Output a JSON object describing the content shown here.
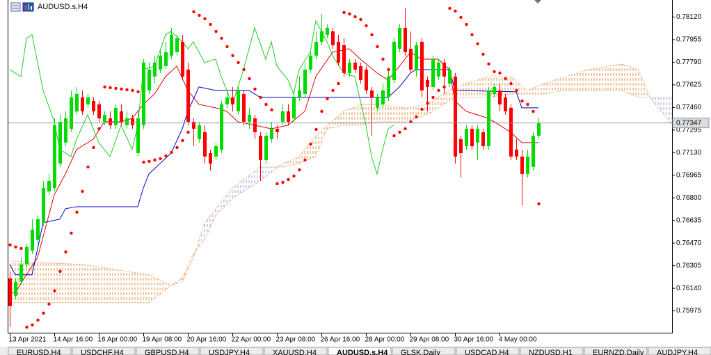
{
  "chart_data": {
    "type": "candlestick",
    "title": "AUDUSD.s,H4",
    "up_color": "#00dc00",
    "down_color": "#ff0000",
    "ylim": [
      0.75818,
      0.78242
    ],
    "yticks": [
      {
        "value": 0.7812,
        "label": "0.78120"
      },
      0.77955,
      {
        "value": 0.7779,
        "label": "0.77790"
      },
      0.77625,
      {
        "value": 0.7746,
        "label": "0.77460"
      },
      0.77295,
      {
        "value": 0.7713,
        "label": "0.77130"
      },
      0.76965,
      {
        "value": 0.768,
        "label": "0.76800"
      },
      0.76635,
      {
        "value": 0.7647,
        "label": "0.76470"
      },
      0.76305,
      {
        "value": 0.7614,
        "label": "0.76140"
      },
      0.75975
    ],
    "xticks": [
      {
        "value": 0,
        "label": "13 Apr 2021"
      },
      {
        "value": 8,
        "label": "14 Apr 16:00"
      },
      {
        "value": 16,
        "label": "16 Apr 00:00"
      },
      {
        "value": 24,
        "label": "19 Apr 08:00"
      },
      {
        "value": 32,
        "label": "20 Apr 16:00"
      },
      {
        "value": 40,
        "label": "22 Apr 00:00"
      },
      {
        "value": 48,
        "label": "23 Apr 08:00"
      },
      {
        "value": 56,
        "label": "26 Apr 16:00"
      },
      {
        "value": 64,
        "label": "28 Apr 00:00"
      },
      {
        "value": 72,
        "label": "29 Apr 08:00"
      },
      {
        "value": 80,
        "label": "30 Apr 16:00"
      },
      {
        "value": 88,
        "label": "4 May 00:00"
      }
    ],
    "current_price": 0.77347,
    "open": [
      0.7621,
      0.76083,
      0.76185,
      0.76312,
      0.76413,
      0.76489,
      0.76616,
      0.76845,
      0.7687,
      0.77048,
      0.77201,
      0.77302,
      0.77429,
      0.77531,
      0.7748,
      0.77505,
      0.7748,
      0.77353,
      0.77378,
      0.77328,
      0.77429,
      0.77328,
      0.77378,
      0.77124,
      0.77328,
      0.77582,
      0.77683,
      0.77734,
      0.77759,
      0.77836,
      0.77861,
      0.77937,
      0.77734,
      0.77353,
      0.77226,
      0.77277,
      0.77124,
      0.77099,
      0.7715,
      0.7748,
      0.77531,
      0.77429,
      0.77556,
      0.77353,
      0.77378,
      0.77251,
      0.77074,
      0.77226,
      0.77302,
      0.77353,
      0.77429,
      0.77378,
      0.77531,
      0.77556,
      0.77734,
      0.77836,
      0.77937,
      0.77988,
      0.78013,
      0.77937,
      0.77912,
      0.77709,
      0.77785,
      0.77759,
      0.77734,
      0.77582,
      0.77455,
      0.7748,
      0.77531,
      0.77658,
      0.77886,
      0.78039,
      0.77886,
      0.77734,
      0.77937,
      0.77658,
      0.77607,
      0.77683,
      0.77785,
      0.77632,
      0.77683,
      0.77226,
      0.77175,
      0.77302,
      0.77201,
      0.77277,
      0.77175,
      0.77556,
      0.77582,
      0.77531,
      0.77455,
      0.7715,
      0.77099,
      0.76972,
      0.77023,
      0.77251
    ],
    "high": [
      0.76261,
      0.7621,
      0.76362,
      0.76464,
      0.76642,
      0.76667,
      0.76921,
      0.76972,
      0.77378,
      0.77404,
      0.77429,
      0.77582,
      0.77607,
      0.77582,
      0.77556,
      0.77531,
      0.77505,
      0.77429,
      0.77429,
      0.7748,
      0.7748,
      0.77429,
      0.77404,
      0.77429,
      0.7781,
      0.77785,
      0.77836,
      0.77886,
      0.77937,
      0.78039,
      0.77988,
      0.77988,
      0.77785,
      0.77378,
      0.77353,
      0.77328,
      0.7715,
      0.77201,
      0.77505,
      0.77582,
      0.77607,
      0.77607,
      0.77582,
      0.77455,
      0.77404,
      0.77277,
      0.77277,
      0.77353,
      0.77328,
      0.7748,
      0.7748,
      0.77582,
      0.77683,
      0.77785,
      0.77861,
      0.78013,
      0.7814,
      0.78064,
      0.78039,
      0.77988,
      0.77963,
      0.7781,
      0.7781,
      0.77785,
      0.77759,
      0.77607,
      0.77556,
      0.77632,
      0.77734,
      0.77963,
      0.78064,
      0.78181,
      0.78013,
      0.77937,
      0.77963,
      0.77683,
      0.77836,
      0.7781,
      0.7781,
      0.77759,
      0.77709,
      0.77251,
      0.77328,
      0.77328,
      0.77328,
      0.77302,
      0.77607,
      0.77632,
      0.77632,
      0.77556,
      0.7748,
      0.77226,
      0.7715,
      0.7715,
      0.77277,
      0.77378
    ],
    "low": [
      0.75854,
      0.76058,
      0.76159,
      0.76286,
      0.76388,
      0.76464,
      0.76591,
      0.7682,
      0.76845,
      0.77023,
      0.77175,
      0.77277,
      0.77404,
      0.77404,
      0.77455,
      0.77404,
      0.77353,
      0.77328,
      0.77302,
      0.77302,
      0.77328,
      0.77302,
      0.77302,
      0.77099,
      0.77302,
      0.77556,
      0.77632,
      0.77709,
      0.77734,
      0.7781,
      0.77836,
      0.77658,
      0.77328,
      0.77175,
      0.77201,
      0.77048,
      0.76997,
      0.77074,
      0.77124,
      0.77455,
      0.77429,
      0.77404,
      0.77328,
      0.77302,
      0.77226,
      0.76921,
      0.77048,
      0.77201,
      0.77226,
      0.77328,
      0.77328,
      0.77353,
      0.77505,
      0.77531,
      0.77709,
      0.7781,
      0.77912,
      0.77963,
      0.77886,
      0.77759,
      0.77683,
      0.77683,
      0.77709,
      0.77632,
      0.77556,
      0.77251,
      0.77429,
      0.77455,
      0.77505,
      0.77632,
      0.77861,
      0.77836,
      0.77709,
      0.77683,
      0.77531,
      0.77429,
      0.77582,
      0.77658,
      0.77556,
      0.77607,
      0.77048,
      0.76947,
      0.7715,
      0.7715,
      0.77074,
      0.7715,
      0.7715,
      0.77531,
      0.77429,
      0.77404,
      0.77074,
      0.77074,
      0.76743,
      0.76947,
      0.76997,
      0.77226
    ],
    "close": [
      0.76007,
      0.76185,
      0.76312,
      0.76439,
      0.76566,
      0.76642,
      0.7687,
      0.76921,
      0.77328,
      0.77353,
      0.77378,
      0.77531,
      0.77556,
      0.77429,
      0.77531,
      0.77429,
      0.77378,
      0.77404,
      0.77328,
      0.77455,
      0.77353,
      0.77378,
      0.77328,
      0.77378,
      0.77785,
      0.77734,
      0.77785,
      0.77836,
      0.77861,
      0.77988,
      0.77963,
      0.77683,
      0.77353,
      0.77302,
      0.77328,
      0.77099,
      0.77048,
      0.77175,
      0.7748,
      0.77531,
      0.7748,
      0.77582,
      0.77353,
      0.77404,
      0.77277,
      0.77074,
      0.77251,
      0.77302,
      0.77277,
      0.77429,
      0.77353,
      0.77531,
      0.77582,
      0.77734,
      0.77836,
      0.77937,
      0.78013,
      0.78039,
      0.77912,
      0.77785,
      0.77709,
      0.77785,
      0.77734,
      0.77658,
      0.77582,
      0.77531,
      0.77531,
      0.77582,
      0.77683,
      0.77937,
      0.78039,
      0.77861,
      0.77734,
      0.77912,
      0.77582,
      0.77607,
      0.7781,
      0.77785,
      0.77683,
      0.77734,
      0.77099,
      0.77124,
      0.77302,
      0.77175,
      0.77302,
      0.77175,
      0.77582,
      0.77607,
      0.7748,
      0.77429,
      0.77099,
      0.77099,
      0.76972,
      0.77099,
      0.77251,
      0.77347
    ],
    "lines": [
      {
        "color": "#e00000",
        "x": [
          0,
          1,
          3,
          5,
          6,
          8,
          10,
          12,
          15,
          17,
          20,
          22,
          24,
          26,
          28,
          30,
          32,
          34,
          37,
          39,
          41,
          44,
          47,
          50,
          53,
          55,
          58,
          61,
          63,
          66,
          68,
          70,
          72,
          74,
          77,
          79,
          80,
          82,
          84,
          86,
          88,
          90,
          92,
          95
        ],
        "values": [
          0.76108,
          0.76108,
          0.76236,
          0.76362,
          0.76515,
          0.7682,
          0.76972,
          0.7715,
          0.77226,
          0.77353,
          0.77353,
          0.77378,
          0.7748,
          0.77556,
          0.77683,
          0.77759,
          0.77582,
          0.7748,
          0.77455,
          0.77429,
          0.77353,
          0.77328,
          0.77302,
          0.77328,
          0.77429,
          0.77683,
          0.77861,
          0.77886,
          0.7781,
          0.77709,
          0.77658,
          0.77759,
          0.77861,
          0.7781,
          0.7781,
          0.77734,
          0.77505,
          0.77429,
          0.77404,
          0.77378,
          0.77328,
          0.77277,
          0.77201,
          0.77201
        ]
      },
      {
        "color": "#0000c8",
        "x": [
          0,
          1,
          4,
          6,
          9,
          10,
          12,
          23,
          24,
          25,
          29,
          31,
          32,
          34,
          37,
          43,
          45,
          68,
          70,
          72,
          73,
          79,
          80,
          91,
          92,
          95
        ],
        "values": [
          0.76312,
          0.76236,
          0.76236,
          0.76616,
          0.76642,
          0.76718,
          0.76733,
          0.76733,
          0.7687,
          0.76972,
          0.77124,
          0.77302,
          0.77429,
          0.77607,
          0.77582,
          0.77582,
          0.77531,
          0.77531,
          0.77607,
          0.77709,
          0.77734,
          0.77734,
          0.77582,
          0.77572,
          0.77455,
          0.77455
        ]
      },
      {
        "color": "#22cc22",
        "x": [
          0,
          2,
          3,
          4,
          6,
          8,
          9,
          11,
          12,
          14,
          16,
          18,
          20,
          22,
          23,
          24,
          26,
          28,
          29,
          31,
          32,
          33,
          35,
          37,
          38,
          40,
          42,
          44,
          46,
          47,
          48,
          50,
          51,
          52,
          54,
          55,
          57,
          58,
          60,
          62,
          64,
          65,
          66,
          67,
          68,
          69
        ],
        "values": [
          0.77734,
          0.77683,
          0.77963,
          0.77988,
          0.77582,
          0.77353,
          0.7715,
          0.77099,
          0.77226,
          0.77404,
          0.77201,
          0.77099,
          0.77328,
          0.7715,
          0.77328,
          0.77734,
          0.77759,
          0.77988,
          0.78013,
          0.77937,
          0.77886,
          0.77937,
          0.77785,
          0.7781,
          0.77683,
          0.7748,
          0.77734,
          0.78039,
          0.7781,
          0.77937,
          0.77759,
          0.77658,
          0.77556,
          0.77734,
          0.77861,
          0.7809,
          0.77937,
          0.77836,
          0.77709,
          0.77683,
          0.77328,
          0.77099,
          0.76972,
          0.7715,
          0.77302,
          0.77328
        ]
      }
    ],
    "cloud": {
      "up_color": "#e8904a",
      "down_color": "#9aa6e0",
      "x": [
        0,
        13,
        25,
        29,
        31,
        33,
        35,
        37,
        40,
        45,
        49,
        52,
        55,
        57,
        60,
        63,
        66,
        71,
        75,
        80,
        86,
        90,
        93,
        96,
        100,
        104,
        110,
        113,
        115,
        117,
        119
      ],
      "span_a": [
        0.76337,
        0.76312,
        0.76236,
        0.76159,
        0.7621,
        0.76388,
        0.76489,
        0.76667,
        0.76794,
        0.76921,
        0.77048,
        0.77099,
        0.77251,
        0.77328,
        0.77429,
        0.7748,
        0.7748,
        0.77455,
        0.7748,
        0.77607,
        0.77683,
        0.77683,
        0.77582,
        0.77632,
        0.77683,
        0.77734,
        0.77775,
        0.77734,
        0.77531,
        0.77429,
        0.77338
      ],
      "span_b": [
        0.76032,
        0.76032,
        0.76032,
        0.76159,
        0.76185,
        0.76362,
        0.76616,
        0.76718,
        0.7687,
        0.77023,
        0.77023,
        0.77048,
        0.77099,
        0.77302,
        0.77328,
        0.77328,
        0.77353,
        0.77353,
        0.77404,
        0.77531,
        0.77531,
        0.77556,
        0.77556,
        0.77556,
        0.77582,
        0.77582,
        0.77582,
        0.77531,
        0.77531,
        0.77531,
        0.77531
      ]
    },
    "sar": {
      "color": "#ff0000",
      "values": [
        0.76454,
        0.76439,
        0.76428,
        0.75854,
        0.7587,
        0.75905,
        0.75956,
        0.76022,
        0.76119,
        0.76261,
        0.76403,
        0.7654,
        0.76693,
        0.76845,
        0.77023,
        0.77165,
        0.77302,
        0.77607,
        0.77602,
        0.77597,
        0.77592,
        0.77587,
        0.77582,
        0.77572,
        0.77058,
        0.77064,
        0.77074,
        0.77084,
        0.77104,
        0.7713,
        0.77165,
        0.77216,
        0.77277,
        0.78156,
        0.7813,
        0.78105,
        0.78064,
        0.78013,
        0.77963,
        0.77902,
        0.77836,
        0.77785,
        0.77734,
        0.77668,
        0.77592,
        0.77531,
        0.7748,
        0.7744,
        0.76901,
        0.76911,
        0.76931,
        0.76957,
        0.77002,
        0.77074,
        0.7719,
        0.77297,
        0.77429,
        0.77521,
        0.77582,
        0.77632,
        0.78151,
        0.7814,
        0.7812,
        0.781,
        0.78054,
        0.77988,
        0.77902,
        0.7781,
        0.77734,
        0.77251,
        0.77277,
        0.77302,
        0.77353,
        0.77389,
        0.77444,
        0.7749,
        0.77531,
        0.77582,
        0.77607,
        0.78181,
        0.78161,
        0.78115,
        0.78064,
        0.77988,
        0.77922,
        0.77846,
        0.77775,
        0.77719,
        0.77709,
        0.77668,
        0.77632,
        0.77582,
        0.77505,
        0.7748,
        0.77429,
        0.76754
      ]
    }
  },
  "tabs": [
    "EURUSD,H4",
    "USDCHF,H4",
    "GBPUSD,H4",
    "USDJPY,H4",
    "XAUUSD,H4",
    "AUDUSD.s,H4",
    "GLSK,Daily",
    "USDCAD,H4",
    "NZDUSD,H1",
    "EURNZD,Daily",
    "AUDJPY,H4"
  ],
  "active_tab": 5
}
